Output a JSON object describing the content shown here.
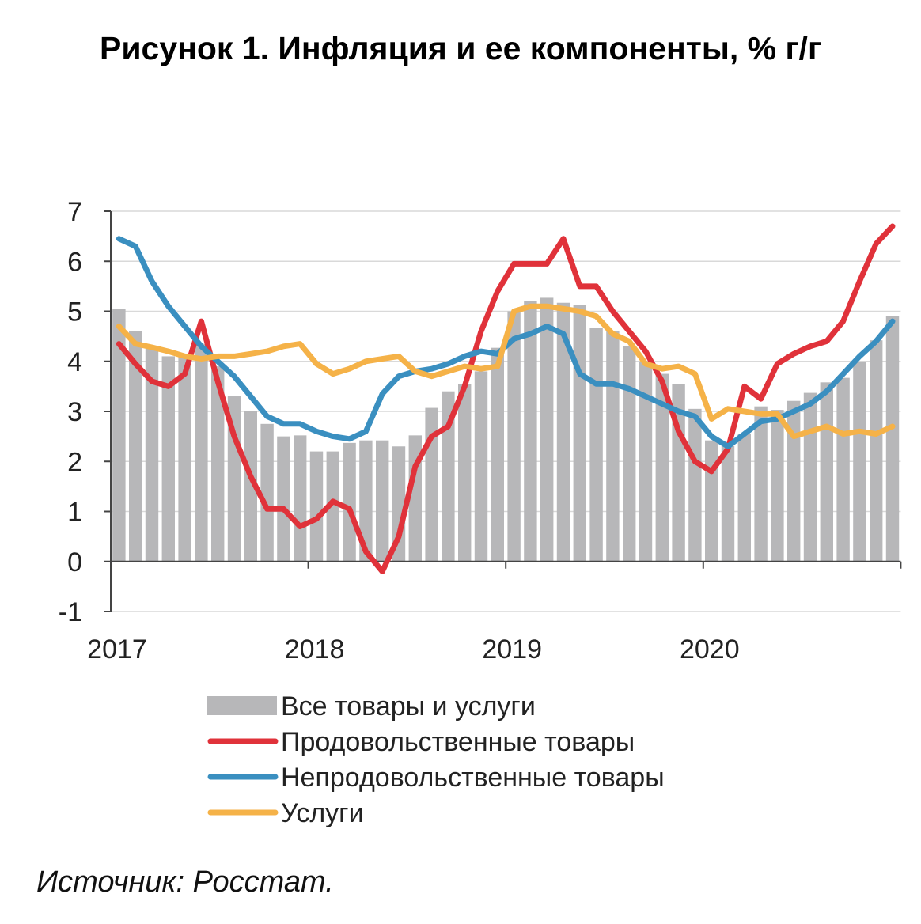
{
  "title": "Рисунок 1. Инфляция и ее компоненты, % г/г",
  "source": "Источник: Росстат.",
  "chart_data": {
    "type": "bar",
    "combo": "bar+line",
    "y_ticks": [
      "7",
      "6",
      "5",
      "4",
      "3",
      "2",
      "1",
      "0",
      "-1"
    ],
    "ylim": [
      -1,
      7
    ],
    "x_ticks": [
      "2017",
      "2018",
      "2019",
      "2020"
    ],
    "x_start_year": 2017,
    "n_months": 48,
    "grid": true,
    "legend_position": "bottom",
    "bars": {
      "name": "Все товары и услуги",
      "color": "#b7b7b9",
      "values": [
        5.05,
        4.6,
        4.25,
        4.1,
        4.1,
        4.35,
        3.9,
        3.3,
        3.0,
        2.75,
        2.5,
        2.52,
        2.2,
        2.2,
        2.37,
        2.42,
        2.42,
        2.3,
        2.52,
        3.07,
        3.4,
        3.55,
        3.8,
        4.27,
        5.0,
        5.2,
        5.27,
        5.17,
        5.13,
        4.66,
        4.6,
        4.31,
        4.0,
        3.75,
        3.54,
        3.05,
        2.42,
        2.31,
        2.55,
        3.1,
        3.03,
        3.21,
        3.37,
        3.58,
        3.67,
        3.99,
        4.42,
        4.91
      ]
    },
    "series": [
      {
        "name": "Продовольственные товары",
        "color": "#e0323a",
        "values": [
          4.35,
          3.95,
          3.6,
          3.5,
          3.75,
          4.8,
          3.6,
          2.5,
          1.7,
          1.05,
          1.05,
          0.7,
          0.85,
          1.2,
          1.05,
          0.2,
          -0.2,
          0.5,
          1.9,
          2.5,
          2.7,
          3.5,
          4.6,
          5.4,
          5.95,
          5.95,
          5.95,
          6.45,
          5.5,
          5.5,
          5.0,
          4.6,
          4.2,
          3.6,
          2.6,
          2.0,
          1.8,
          2.25,
          3.5,
          3.25,
          3.95,
          4.15,
          4.3,
          4.4,
          4.8,
          5.6,
          6.35,
          6.7
        ]
      },
      {
        "name": "Непродовольственные товары",
        "color": "#3a8fc0",
        "values": [
          6.45,
          6.3,
          5.6,
          5.1,
          4.7,
          4.3,
          4.0,
          3.7,
          3.3,
          2.9,
          2.75,
          2.75,
          2.6,
          2.5,
          2.45,
          2.6,
          3.35,
          3.7,
          3.8,
          3.85,
          3.95,
          4.1,
          4.2,
          4.15,
          4.45,
          4.55,
          4.7,
          4.55,
          3.75,
          3.55,
          3.55,
          3.45,
          3.3,
          3.15,
          3.0,
          2.9,
          2.5,
          2.3,
          2.55,
          2.8,
          2.85,
          3.0,
          3.15,
          3.4,
          3.75,
          4.1,
          4.4,
          4.8
        ]
      },
      {
        "name": "Услуги",
        "color": "#f5b248",
        "values": [
          4.7,
          4.35,
          4.28,
          4.2,
          4.1,
          4.05,
          4.1,
          4.1,
          4.15,
          4.2,
          4.3,
          4.35,
          3.95,
          3.75,
          3.85,
          4.0,
          4.05,
          4.1,
          3.8,
          3.7,
          3.8,
          3.9,
          3.85,
          3.9,
          5.0,
          5.1,
          5.1,
          5.05,
          5.0,
          4.9,
          4.55,
          4.4,
          3.95,
          3.85,
          3.9,
          3.75,
          2.85,
          3.05,
          3.0,
          2.95,
          2.95,
          2.5,
          2.6,
          2.7,
          2.55,
          2.6,
          2.55,
          2.7
        ]
      }
    ]
  }
}
